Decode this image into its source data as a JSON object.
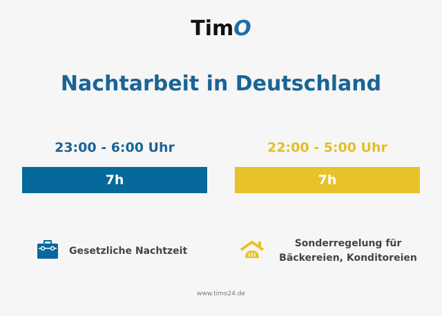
{
  "logo": {
    "text": "Tim",
    "accent": "O"
  },
  "title": "Nachtarbeit in Deutschland",
  "left": {
    "time": "23:00 - 6:00 Uhr",
    "duration": "7h",
    "color": "#05699c",
    "icon": "toolbox-icon",
    "label": "Gesetzliche Nachtzeit"
  },
  "right": {
    "time": "22:00 - 5:00 Uhr",
    "duration": "7h",
    "color": "#e8c22a",
    "icon": "bakery-house-icon",
    "label_line1": "Sonderregelung für",
    "label_line2": "Bäckereien, Konditoreien"
  },
  "footer": "www.timo24.de"
}
